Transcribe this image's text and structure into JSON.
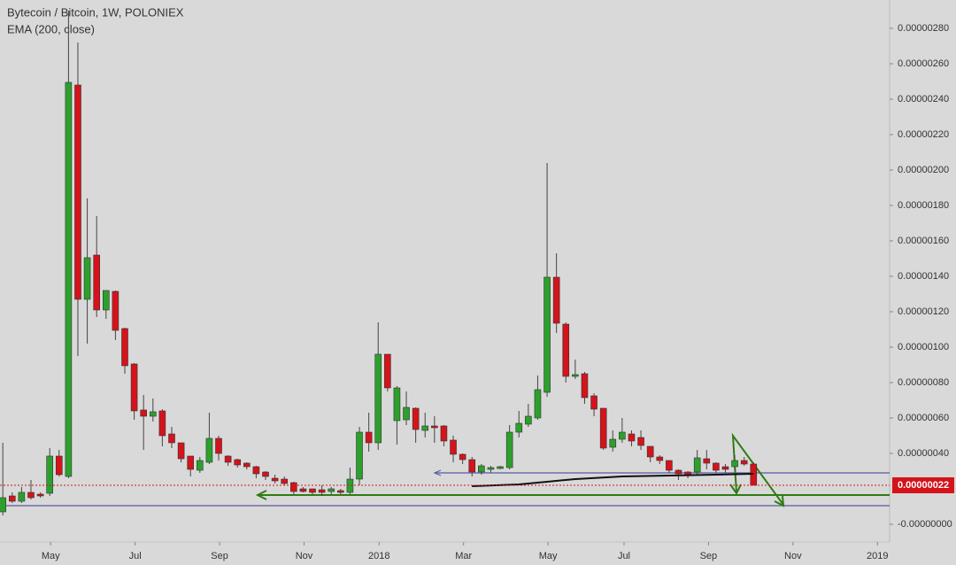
{
  "chart_data": {
    "type": "candlestick",
    "title": "Bytecoin / Bitcoin, 1W, POLONIEX",
    "up_color": "#2ca02c",
    "down_color": "#d4131b",
    "open": [
      7e-08,
      1.6e-07,
      1.3e-07,
      1.8e-07,
      1.7e-07,
      1.75e-07,
      3.85e-07,
      2.7e-07,
      2.48e-06,
      1.27e-06,
      1.52e-06,
      1.21e-06,
      1.315e-06,
      1.105e-06,
      9.05e-07,
      6.45e-07,
      6.1e-07,
      6.4e-07,
      5.1e-07,
      4.6e-07,
      3.85e-07,
      3.05e-07,
      3.5e-07,
      4.85e-07,
      3.85e-07,
      3.65e-07,
      3.45e-07,
      3.25e-07,
      2.95e-07,
      2.6e-07,
      2.55e-07,
      2.35e-07,
      2e-07,
      2e-07,
      1.95e-07,
      1.85e-07,
      1.9e-07,
      1.8e-07,
      2.55e-07,
      5.2e-07,
      4.6e-07,
      9.6e-07,
      5.85e-07,
      5.9e-07,
      6.55e-07,
      5.3e-07,
      5.55e-07,
      5.55e-07,
      4.75e-07,
      3.95e-07,
      3.65e-07,
      2.95e-07,
      3.1e-07,
      3.15e-07,
      3.2e-07,
      5.2e-07,
      5.65e-07,
      6e-07,
      7.45e-07,
      1.395e-06,
      1.13e-06,
      8.35e-07,
      8.5e-07,
      7.25e-07,
      6.55e-07,
      4.35e-07,
      4.8e-07,
      5.1e-07,
      4.9e-07,
      4.4e-07,
      3.8e-07,
      3.6e-07,
      3.05e-07,
      2.95e-07,
      2.95e-07,
      3.7e-07,
      3.45e-07,
      3.25e-07,
      3.25e-07,
      3.6e-07,
      3.4e-07
    ],
    "high": [
      4.6e-07,
      1.8e-07,
      2.1e-07,
      2.5e-07,
      1.8e-07,
      4.3e-07,
      4.2e-07,
      2.9e-06,
      2.72e-06,
      1.84e-06,
      1.74e-06,
      1.32e-06,
      1.32e-06,
      1.11e-06,
      9.1e-07,
      7.3e-07,
      7.1e-07,
      6.5e-07,
      5.5e-07,
      4.6e-07,
      3.85e-07,
      3.8e-07,
      6.3e-07,
      5e-07,
      3.9e-07,
      3.7e-07,
      3.5e-07,
      3.3e-07,
      3e-07,
      2.8e-07,
      2.7e-07,
      2.4e-07,
      2.1e-07,
      2e-07,
      2.2e-07,
      2.1e-07,
      2e-07,
      3.2e-07,
      5.5e-07,
      6.3e-07,
      1.14e-06,
      9.6e-07,
      7.8e-07,
      7.5e-07,
      6.6e-07,
      6.3e-07,
      6.1e-07,
      5.6e-07,
      5e-07,
      4e-07,
      3.8e-07,
      3.4e-07,
      3.3e-07,
      3.3e-07,
      5.6e-07,
      6.4e-07,
      6.8e-07,
      8.4e-07,
      2.04e-06,
      1.53e-06,
      1.14e-06,
      9.3e-07,
      8.6e-07,
      7.4e-07,
      6.55e-07,
      5.3e-07,
      6e-07,
      5.3e-07,
      5.3e-07,
      4.4e-07,
      3.9e-07,
      3.6e-07,
      3.1e-07,
      3e-07,
      4.2e-07,
      4.2e-07,
      3.5e-07,
      3.4e-07,
      3.9e-07,
      3.8e-07,
      3.5e-07
    ],
    "low": [
      5e-08,
      1.2e-07,
      1.2e-07,
      1.4e-07,
      1.5e-07,
      1.6e-07,
      2.7e-07,
      2.6e-07,
      9.5e-07,
      1.02e-06,
      1.17e-06,
      1.16e-06,
      1.04e-06,
      8.5e-07,
      5.9e-07,
      4.2e-07,
      5.8e-07,
      4.4e-07,
      4.3e-07,
      3.5e-07,
      2.7e-07,
      2.9e-07,
      3.4e-07,
      3.6e-07,
      3.3e-07,
      3.2e-07,
      3.1e-07,
      2.6e-07,
      2.5e-07,
      2.3e-07,
      2.2e-07,
      1.7e-07,
      1.8e-07,
      1.7e-07,
      1.6e-07,
      1.7e-07,
      1.7e-07,
      1.7e-07,
      2.2e-07,
      4.1e-07,
      4.2e-07,
      7.5e-07,
      4.5e-07,
      5.6e-07,
      4.6e-07,
      4.9e-07,
      4.6e-07,
      4.4e-07,
      3.5e-07,
      3.4e-07,
      2.7e-07,
      2.8e-07,
      2.9e-07,
      3.1e-07,
      3.1e-07,
      4.9e-07,
      5.5e-07,
      5.9e-07,
      7.2e-07,
      1.08e-06,
      8e-07,
      8.2e-07,
      6.8e-07,
      6.1e-07,
      4.2e-07,
      4.1e-07,
      4.6e-07,
      4.4e-07,
      4.2e-07,
      3.5e-07,
      3.4e-07,
      2.9e-07,
      2.5e-07,
      2.6e-07,
      2.8e-07,
      3.1e-07,
      2.9e-07,
      2.9e-07,
      3e-07,
      3.3e-07,
      2.2e-07
    ],
    "close": [
      1.5e-07,
      1.3e-07,
      1.8e-07,
      1.5e-07,
      1.6e-07,
      3.85e-07,
      2.8e-07,
      2.495e-06,
      1.27e-06,
      1.505e-06,
      1.21e-06,
      1.32e-06,
      1.095e-06,
      8.95e-07,
      6.4e-07,
      6.1e-07,
      6.35e-07,
      5e-07,
      4.6e-07,
      3.7e-07,
      3.1e-07,
      3.6e-07,
      4.85e-07,
      4e-07,
      3.5e-07,
      3.35e-07,
      3.25e-07,
      2.85e-07,
      2.7e-07,
      2.45e-07,
      2.3e-07,
      1.85e-07,
      1.85e-07,
      1.8e-07,
      1.8e-07,
      2e-07,
      1.8e-07,
      2.55e-07,
      5.2e-07,
      4.6e-07,
      9.6e-07,
      7.7e-07,
      7.7e-07,
      6.6e-07,
      5.35e-07,
      5.55e-07,
      5.45e-07,
      4.7e-07,
      3.95e-07,
      3.65e-07,
      2.95e-07,
      3.3e-07,
      3.2e-07,
      3.25e-07,
      5.2e-07,
      5.7e-07,
      6.1e-07,
      7.6e-07,
      1.395e-06,
      1.135e-06,
      8.35e-07,
      8.45e-07,
      7.15e-07,
      6.5e-07,
      4.3e-07,
      4.8e-07,
      5.2e-07,
      4.7e-07,
      4.45e-07,
      3.8e-07,
      3.6e-07,
      3.05e-07,
      2.85e-07,
      2.75e-07,
      3.75e-07,
      3.45e-07,
      3.05e-07,
      3.1e-07,
      3.6e-07,
      3.4e-07,
      2.2e-07
    ],
    "ema": {
      "name": "EMA (200, close)",
      "color": "#111111",
      "x": [
        50,
        55,
        58,
        61,
        66,
        71,
        76,
        80
      ],
      "values": [
        2.15e-07,
        2.25e-07,
        2.4e-07,
        2.55e-07,
        2.7e-07,
        2.75e-07,
        2.8e-07,
        2.85e-07
      ]
    },
    "last_price": {
      "value": 2.2e-07,
      "label": "0.00000022"
    },
    "xlim": [
      -0.3,
      94.5
    ],
    "xticks": [
      {
        "value": 5.1,
        "label": "May"
      },
      {
        "value": 14.1,
        "label": "Jul"
      },
      {
        "value": 23.1,
        "label": "Sep"
      },
      {
        "value": 32.1,
        "label": "Nov"
      },
      {
        "value": 40.1,
        "label": "2018"
      },
      {
        "value": 49.1,
        "label": "Mar"
      },
      {
        "value": 58.1,
        "label": "May"
      },
      {
        "value": 66.2,
        "label": "Jul"
      },
      {
        "value": 75.2,
        "label": "Sep"
      },
      {
        "value": 84.2,
        "label": "Nov"
      },
      {
        "value": 93.2,
        "label": "2019"
      }
    ],
    "ylim": [
      -1e-07,
      2.96e-06
    ],
    "yticks": [
      {
        "value": 2.8e-06,
        "label": "0.00000280"
      },
      {
        "value": 2.6e-06,
        "label": "0.00000260"
      },
      {
        "value": 2.4e-06,
        "label": "0.00000240"
      },
      {
        "value": 2.2e-06,
        "label": "0.00000220"
      },
      {
        "value": 2e-06,
        "label": "0.00000200"
      },
      {
        "value": 1.8e-06,
        "label": "0.00000180"
      },
      {
        "value": 1.6e-06,
        "label": "0.00000160"
      },
      {
        "value": 1.4e-06,
        "label": "0.00000140"
      },
      {
        "value": 1.2e-06,
        "label": "0.00000120"
      },
      {
        "value": 1e-06,
        "label": "0.00000100"
      },
      {
        "value": 8e-07,
        "label": "0.00000080"
      },
      {
        "value": 6e-07,
        "label": "0.00000060"
      },
      {
        "value": 4e-07,
        "label": "0.00000040"
      },
      {
        "value": 0,
        "label": "-0.00000000"
      }
    ]
  }
}
